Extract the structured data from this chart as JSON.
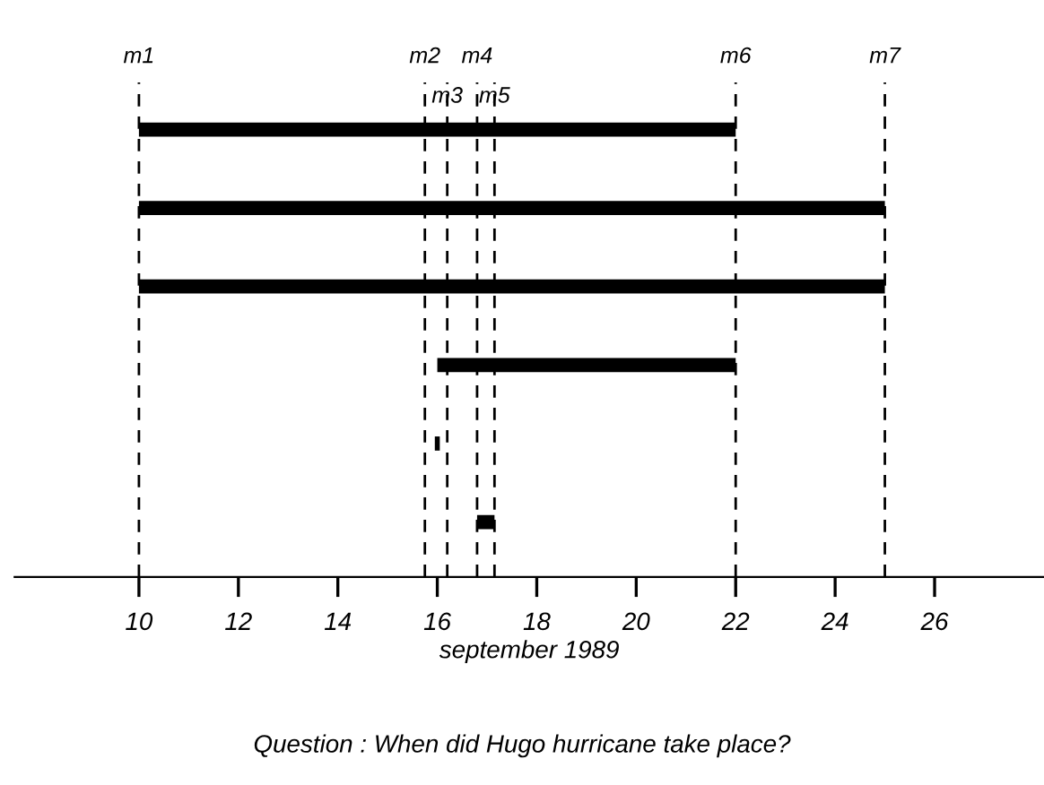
{
  "chart_data": {
    "type": "bar",
    "orientation": "horizontal",
    "categories": [
      null,
      null,
      null,
      null,
      null,
      null
    ],
    "base": [
      10,
      10,
      10,
      16,
      15.95,
      16.8
    ],
    "values": [
      12,
      15,
      15,
      6,
      0.1,
      0.35
    ],
    "color": "#000000",
    "xlabel": "september 1989",
    "xlim": [
      7.5,
      28.2
    ],
    "xticks": [
      10,
      12,
      14,
      16,
      18,
      20,
      22,
      24,
      26
    ],
    "tick_labels": "x",
    "grid": false,
    "ref_lines": [
      {
        "axis": "x",
        "value": 10,
        "label": "m1",
        "line_style": "dashed"
      },
      {
        "axis": "x",
        "value": 15.75,
        "label": "m2",
        "line_style": "dashed"
      },
      {
        "axis": "x",
        "value": 16.2,
        "label": "m3",
        "line_style": "dashed"
      },
      {
        "axis": "x",
        "value": 16.8,
        "label": "m4",
        "line_style": "dashed"
      },
      {
        "axis": "x",
        "value": 17.15,
        "label": "m5",
        "line_style": "dashed"
      },
      {
        "axis": "x",
        "value": 22,
        "label": "m6",
        "line_style": "dashed"
      },
      {
        "axis": "x",
        "value": 25,
        "label": "m7",
        "line_style": "dashed"
      }
    ],
    "annotations": [
      "Question : When did Hugo hurricane take place?"
    ]
  }
}
